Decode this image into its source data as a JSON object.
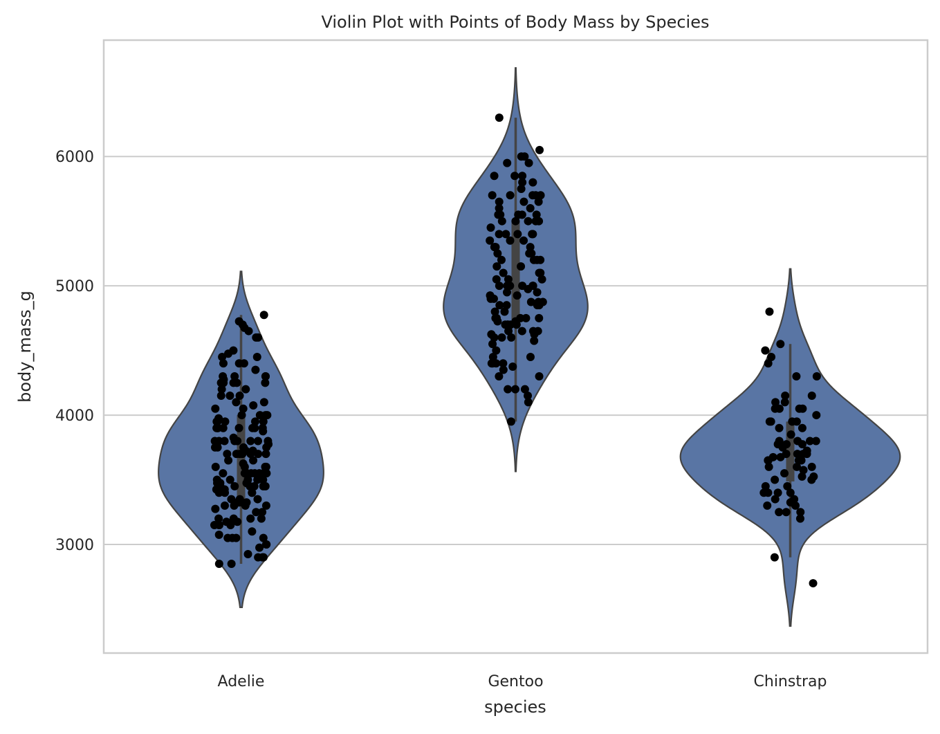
{
  "chart_data": {
    "type": "violin",
    "title": "Violin Plot with Points of Body Mass by Species",
    "xlabel": "species",
    "ylabel": "body_mass_g",
    "categories": [
      "Adelie",
      "Gentoo",
      "Chinstrap"
    ],
    "yticks": [
      3000,
      4000,
      5000,
      6000
    ],
    "ytick_labels": [
      "3000",
      "4000",
      "5000",
      "6000"
    ],
    "ylim": [
      2160,
      6900
    ],
    "grid": "horizontal",
    "colors": {
      "violin": "#5975a4",
      "edge": "#444444",
      "points": "#000000",
      "grid": "#cccccc"
    },
    "series": [
      {
        "name": "Adelie",
        "values": [
          3750,
          3800,
          3250,
          3450,
          3650,
          3625,
          4675,
          3475,
          4250,
          3300,
          3700,
          3200,
          3800,
          4400,
          3700,
          3450,
          4500,
          3325,
          4200,
          3400,
          3600,
          3800,
          3950,
          3800,
          3800,
          3550,
          3200,
          3150,
          3950,
          3250,
          3900,
          3300,
          3900,
          3325,
          4150,
          3950,
          3550,
          3300,
          4650,
          3150,
          3900,
          3100,
          4400,
          3000,
          4600,
          3425,
          2975,
          3450,
          4150,
          3500,
          4300,
          3450,
          4050,
          2900,
          3700,
          3550,
          3800,
          2850,
          3750,
          3150,
          4400,
          3600,
          4050,
          2850,
          3950,
          3350,
          4100,
          3050,
          4450,
          3600,
          3900,
          3550,
          4150,
          3700,
          4250,
          3700,
          3900,
          3550,
          4000,
          3200,
          4700,
          3800,
          4200,
          3350,
          3550,
          3800,
          3500,
          3950,
          3600,
          3550,
          4300,
          3400,
          4450,
          3300,
          4300,
          3700,
          4350,
          2900,
          4100,
          3725,
          4725,
          3075,
          4250,
          2925,
          3550,
          3750,
          3900,
          3175,
          4775,
          3825,
          4600,
          3200,
          4275,
          3900,
          4075,
          2900,
          3775,
          3350,
          3325,
          3150,
          3500,
          3450,
          3875,
          3050,
          4000,
          3275,
          4300,
          3050,
          4000,
          3325,
          3500,
          3500,
          4475,
          3425,
          3900,
          3175,
          3975,
          3400,
          4250,
          3400,
          3475,
          3050,
          3725,
          3000,
          3650,
          4250,
          3475,
          3450,
          3750,
          3700,
          4000
        ]
      },
      {
        "name": "Gentoo",
        "values": [
          4500,
          5700,
          4450,
          5700,
          5400,
          4550,
          4800,
          5200,
          4400,
          5150,
          4650,
          5550,
          4650,
          5850,
          4200,
          5850,
          4150,
          6300,
          4800,
          5350,
          5700,
          5000,
          4400,
          5050,
          5000,
          5100,
          4100,
          5650,
          4600,
          5550,
          5250,
          4700,
          5050,
          6050,
          5150,
          5400,
          4950,
          5250,
          4350,
          5350,
          3950,
          5700,
          4300,
          4750,
          5550,
          4900,
          4200,
          5400,
          5100,
          5300,
          4850,
          5300,
          4400,
          5000,
          4900,
          5050,
          4300,
          5000,
          4450,
          5550,
          4200,
          5300,
          4400,
          5650,
          4700,
          5700,
          4650,
          5800,
          4700,
          5550,
          4750,
          5000,
          5100,
          5200,
          4700,
          5800,
          4600,
          6000,
          4750,
          5950,
          4625,
          5450,
          4725,
          5350,
          4750,
          5600,
          4600,
          5300,
          4875,
          5550,
          4950,
          5400,
          4750,
          5650,
          4850,
          5200,
          4925,
          4875,
          4625,
          5250,
          4850,
          5600,
          4975,
          5500,
          4725,
          5500,
          4700,
          5500,
          4575,
          5500,
          5000,
          5950,
          4650,
          5500,
          4375,
          5850,
          4875,
          6000,
          4925,
          4850,
          5750,
          5200,
          5400
        ]
      },
      {
        "name": "Chinstrap",
        "values": [
          3500,
          3900,
          3650,
          3525,
          3725,
          3950,
          3250,
          3750,
          4150,
          3700,
          3800,
          3775,
          3700,
          4050,
          3575,
          4050,
          3300,
          3700,
          3450,
          4400,
          3600,
          3400,
          2900,
          3800,
          3300,
          4150,
          3400,
          3800,
          3700,
          4550,
          3200,
          4300,
          3350,
          4100,
          3600,
          3900,
          3850,
          4800,
          2700,
          4500,
          3950,
          3650,
          3550,
          3500,
          3675,
          4450,
          3400,
          4300,
          3250,
          3675,
          3325,
          3950,
          3600,
          4050,
          3350,
          3450,
          3250,
          4050,
          3800,
          3525,
          3950,
          3650,
          3650,
          4000,
          3400,
          3775,
          4100,
          3775
        ]
      }
    ]
  }
}
